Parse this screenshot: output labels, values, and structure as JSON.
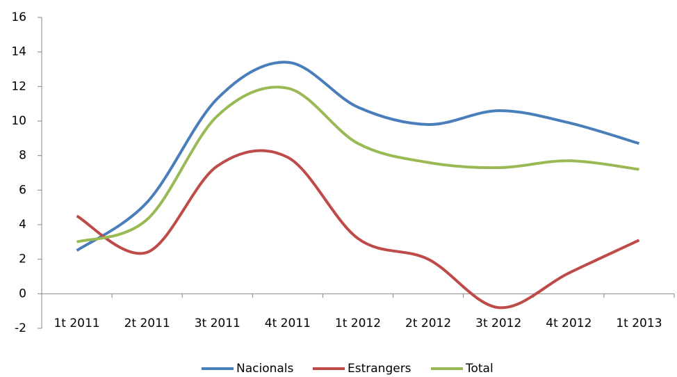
{
  "chart_data": {
    "type": "line",
    "categories": [
      "1t 2011",
      "2t 2011",
      "3t 2011",
      "4t 2011",
      "1t 2012",
      "2t 2012",
      "3t 2012",
      "4t 2012",
      "1t 2013"
    ],
    "series": [
      {
        "name": "Nacionals",
        "color": "#4a7ebb",
        "values": [
          2.5,
          5.3,
          11.3,
          13.4,
          10.8,
          9.8,
          10.6,
          9.9,
          8.7
        ]
      },
      {
        "name": "Estrangers",
        "color": "#be4b48",
        "values": [
          4.5,
          2.4,
          7.4,
          7.9,
          3.2,
          2.0,
          -0.8,
          1.2,
          3.1
        ]
      },
      {
        "name": "Total",
        "color": "#98b954",
        "values": [
          3.0,
          4.3,
          10.3,
          11.9,
          8.7,
          7.6,
          7.3,
          7.7,
          7.2
        ]
      }
    ],
    "ylim": [
      -2,
      16
    ],
    "yticks": [
      -2,
      0,
      2,
      4,
      6,
      8,
      10,
      12,
      14,
      16
    ],
    "grid": false,
    "smooth": true,
    "legend": "bottom"
  }
}
